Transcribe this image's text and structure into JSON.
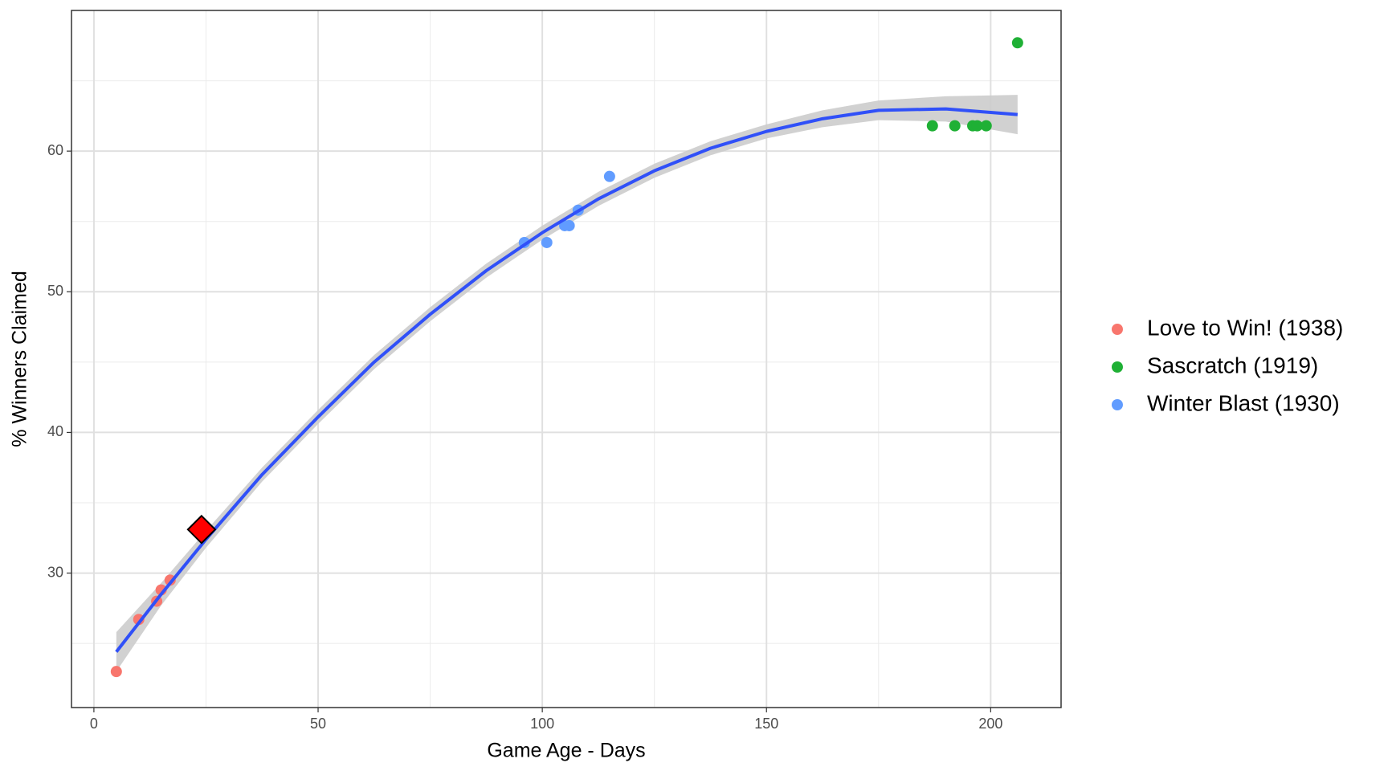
{
  "chart_data": {
    "type": "scatter",
    "x_label": "Game Age - Days",
    "y_label": "% Winners Claimed",
    "xlim": [
      -5,
      215.7
    ],
    "ylim": [
      20.44,
      70
    ],
    "xticks": [
      0,
      50,
      100,
      150,
      200
    ],
    "yticks": [
      30,
      40,
      50,
      60
    ],
    "grid": true,
    "minor_grid": true,
    "legend": "right",
    "series": [
      {
        "name": "Love to Win! (1938)",
        "color": "#f8766d",
        "x": [
          5,
          10,
          14,
          15,
          17
        ],
        "values": [
          23.0,
          26.7,
          28.0,
          28.8,
          29.5
        ]
      },
      {
        "name": "Sascratch (1919)",
        "color": "#1fb035",
        "x": [
          187,
          192,
          196,
          197,
          199,
          206
        ],
        "values": [
          61.8,
          61.8,
          61.8,
          61.8,
          61.8,
          67.7
        ]
      },
      {
        "name": "Winter Blast (1930)",
        "color": "#619cff",
        "x": [
          96,
          101,
          105,
          106,
          108,
          115
        ],
        "values": [
          53.5,
          53.5,
          54.7,
          54.7,
          55.8,
          58.2
        ]
      }
    ],
    "fit": {
      "color": "#3050f8",
      "band_color": "#cccccc",
      "x": [
        5,
        15,
        25,
        37.5,
        50,
        62.5,
        75,
        87.5,
        100,
        112.5,
        125,
        137.5,
        150,
        162.5,
        175,
        190,
        206
      ],
      "values": [
        24.4,
        28.5,
        32.4,
        37.0,
        41.1,
        45.0,
        48.4,
        51.5,
        54.2,
        56.6,
        58.6,
        60.2,
        61.4,
        62.3,
        62.9,
        63.0,
        62.6
      ],
      "lower": [
        23.0,
        27.7,
        31.8,
        36.5,
        40.6,
        44.5,
        47.9,
        51.0,
        53.7,
        56.1,
        58.1,
        59.7,
        60.9,
        61.7,
        62.2,
        62.1,
        61.2
      ],
      "upper": [
        25.8,
        29.3,
        33.0,
        37.5,
        41.6,
        45.5,
        48.9,
        52.0,
        54.7,
        57.1,
        59.1,
        60.7,
        61.9,
        62.9,
        63.6,
        63.9,
        64.0
      ]
    },
    "highlight": {
      "x": 24,
      "value": 33.1,
      "color": "#ff0000"
    }
  }
}
